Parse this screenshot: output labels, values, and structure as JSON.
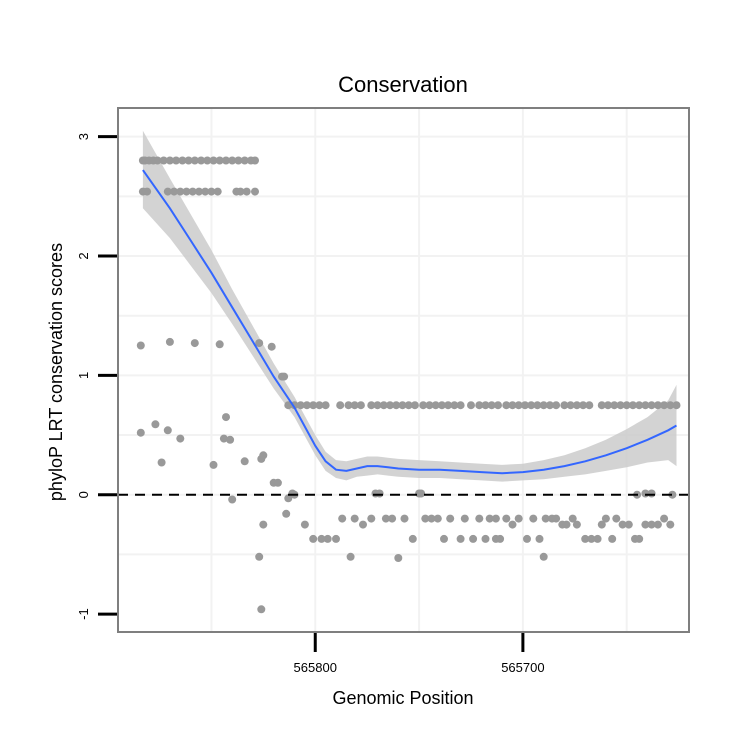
{
  "chart_data": {
    "type": "scatter",
    "title": "Conservation",
    "xlabel": "Genomic Position",
    "ylabel": "phyloP LRT conservation scores",
    "x_reversed": true,
    "xlim": [
      565895,
      565620
    ],
    "ylim": [
      -1.15,
      3.24
    ],
    "x_ticks": [
      565800,
      565700
    ],
    "y_ticks": [
      -1,
      0,
      1,
      2,
      3
    ],
    "x_gridlines": [
      565850,
      565800,
      565750,
      565700,
      565650
    ],
    "y_gridlines": [
      -0.5,
      0,
      0.5,
      1,
      1.5,
      2,
      2.5,
      3
    ],
    "reference_line": {
      "y": 0,
      "style": "dashed"
    },
    "colors": {
      "points": "#999999",
      "smooth_line": "#3366ff",
      "ribbon": "#c8c8c8",
      "panel_border": "#7f7f7f",
      "grid": "#f2f2f2"
    },
    "series": [
      {
        "name": "scores",
        "points": [
          [
            565883,
            2.8
          ],
          [
            565882,
            2.8
          ],
          [
            565880,
            2.8
          ],
          [
            565878,
            2.8
          ],
          [
            565876,
            2.8
          ],
          [
            565873,
            2.8
          ],
          [
            565870,
            2.8
          ],
          [
            565867,
            2.8
          ],
          [
            565864,
            2.8
          ],
          [
            565861,
            2.8
          ],
          [
            565858,
            2.8
          ],
          [
            565855,
            2.8
          ],
          [
            565852,
            2.8
          ],
          [
            565849,
            2.8
          ],
          [
            565846,
            2.8
          ],
          [
            565843,
            2.8
          ],
          [
            565840,
            2.8
          ],
          [
            565837,
            2.8
          ],
          [
            565834,
            2.8
          ],
          [
            565831,
            2.8
          ],
          [
            565829,
            2.8
          ],
          [
            565883,
            2.54
          ],
          [
            565881,
            2.54
          ],
          [
            565871,
            2.54
          ],
          [
            565868,
            2.54
          ],
          [
            565865,
            2.54
          ],
          [
            565862,
            2.54
          ],
          [
            565859,
            2.54
          ],
          [
            565856,
            2.54
          ],
          [
            565853,
            2.54
          ],
          [
            565850,
            2.54
          ],
          [
            565847,
            2.54
          ],
          [
            565838,
            2.54
          ],
          [
            565836,
            2.54
          ],
          [
            565833,
            2.54
          ],
          [
            565829,
            2.54
          ],
          [
            565884,
            1.25
          ],
          [
            565870,
            1.28
          ],
          [
            565858,
            1.27
          ],
          [
            565846,
            1.26
          ],
          [
            565827,
            1.27
          ],
          [
            565821,
            1.24
          ],
          [
            565816,
            0.99
          ],
          [
            565815,
            0.99
          ],
          [
            565884,
            0.52
          ],
          [
            565877,
            0.59
          ],
          [
            565871,
            0.54
          ],
          [
            565865,
            0.47
          ],
          [
            565874,
            0.27
          ],
          [
            565843,
            0.65
          ],
          [
            565844,
            0.47
          ],
          [
            565841,
            0.46
          ],
          [
            565849,
            0.25
          ],
          [
            565840,
            -0.04
          ],
          [
            565834,
            0.28
          ],
          [
            565825,
            0.33
          ],
          [
            565826,
            0.3
          ],
          [
            565820,
            0.1
          ],
          [
            565818,
            0.1
          ],
          [
            565814,
            -0.16
          ],
          [
            565813,
            -0.03
          ],
          [
            565811,
            0.01
          ],
          [
            565810,
            0
          ],
          [
            565827,
            -0.52
          ],
          [
            565826,
            -0.96
          ],
          [
            565825,
            -0.25
          ],
          [
            565813,
            0.75
          ],
          [
            565810,
            0.75
          ],
          [
            565807,
            0.75
          ],
          [
            565804,
            0.75
          ],
          [
            565801,
            0.75
          ],
          [
            565798,
            0.75
          ],
          [
            565795,
            0.75
          ],
          [
            565788,
            0.75
          ],
          [
            565784,
            0.75
          ],
          [
            565781,
            0.75
          ],
          [
            565778,
            0.75
          ],
          [
            565773,
            0.75
          ],
          [
            565770,
            0.75
          ],
          [
            565767,
            0.75
          ],
          [
            565764,
            0.75
          ],
          [
            565761,
            0.75
          ],
          [
            565758,
            0.75
          ],
          [
            565755,
            0.75
          ],
          [
            565752,
            0.75
          ],
          [
            565748,
            0.75
          ],
          [
            565745,
            0.75
          ],
          [
            565742,
            0.75
          ],
          [
            565739,
            0.75
          ],
          [
            565736,
            0.75
          ],
          [
            565733,
            0.75
          ],
          [
            565730,
            0.75
          ],
          [
            565725,
            0.75
          ],
          [
            565721,
            0.75
          ],
          [
            565718,
            0.75
          ],
          [
            565715,
            0.75
          ],
          [
            565712,
            0.75
          ],
          [
            565708,
            0.75
          ],
          [
            565705,
            0.75
          ],
          [
            565702,
            0.75
          ],
          [
            565699,
            0.75
          ],
          [
            565696,
            0.75
          ],
          [
            565693,
            0.75
          ],
          [
            565690,
            0.75
          ],
          [
            565687,
            0.75
          ],
          [
            565684,
            0.75
          ],
          [
            565680,
            0.75
          ],
          [
            565677,
            0.75
          ],
          [
            565674,
            0.75
          ],
          [
            565671,
            0.75
          ],
          [
            565668,
            0.75
          ],
          [
            565662,
            0.75
          ],
          [
            565659,
            0.75
          ],
          [
            565656,
            0.75
          ],
          [
            565653,
            0.75
          ],
          [
            565650,
            0.75
          ],
          [
            565647,
            0.75
          ],
          [
            565644,
            0.75
          ],
          [
            565641,
            0.75
          ],
          [
            565638,
            0.75
          ],
          [
            565635,
            0.75
          ],
          [
            565632,
            0.75
          ],
          [
            565629,
            0.75
          ],
          [
            565626,
            0.75
          ],
          [
            565805,
            -0.25
          ],
          [
            565801,
            -0.37
          ],
          [
            565797,
            -0.37
          ],
          [
            565794,
            -0.37
          ],
          [
            565790,
            -0.37
          ],
          [
            565783,
            -0.52
          ],
          [
            565787,
            -0.2
          ],
          [
            565781,
            -0.2
          ],
          [
            565777,
            -0.25
          ],
          [
            565773,
            -0.2
          ],
          [
            565771,
            0.01
          ],
          [
            565769,
            0.01
          ],
          [
            565766,
            -0.2
          ],
          [
            565763,
            -0.2
          ],
          [
            565760,
            -0.53
          ],
          [
            565757,
            -0.2
          ],
          [
            565753,
            -0.37
          ],
          [
            565750,
            0.01
          ],
          [
            565749,
            0.01
          ],
          [
            565747,
            -0.2
          ],
          [
            565744,
            -0.2
          ],
          [
            565741,
            -0.2
          ],
          [
            565738,
            -0.37
          ],
          [
            565735,
            -0.2
          ],
          [
            565730,
            -0.37
          ],
          [
            565728,
            -0.2
          ],
          [
            565724,
            -0.37
          ],
          [
            565721,
            -0.2
          ],
          [
            565718,
            -0.37
          ],
          [
            565716,
            -0.2
          ],
          [
            565713,
            -0.37
          ],
          [
            565711,
            -0.37
          ],
          [
            565708,
            -0.2
          ],
          [
            565713,
            -0.2
          ],
          [
            565705,
            -0.25
          ],
          [
            565702,
            -0.2
          ],
          [
            565698,
            -0.37
          ],
          [
            565695,
            -0.2
          ],
          [
            565692,
            -0.37
          ],
          [
            565689,
            -0.2
          ],
          [
            565686,
            -0.2
          ],
          [
            565684,
            -0.2
          ],
          [
            565681,
            -0.25
          ],
          [
            565679,
            -0.25
          ],
          [
            565676,
            -0.2
          ],
          [
            565674,
            -0.25
          ],
          [
            565670,
            -0.37
          ],
          [
            565667,
            -0.37
          ],
          [
            565664,
            -0.37
          ],
          [
            565662,
            -0.25
          ],
          [
            565660,
            -0.2
          ],
          [
            565657,
            -0.37
          ],
          [
            565655,
            -0.2
          ],
          [
            565652,
            -0.25
          ],
          [
            565649,
            -0.25
          ],
          [
            565646,
            -0.37
          ],
          [
            565644,
            -0.37
          ],
          [
            565641,
            -0.25
          ],
          [
            565638,
            -0.25
          ],
          [
            565635,
            -0.25
          ],
          [
            565632,
            -0.2
          ],
          [
            565629,
            -0.25
          ],
          [
            565690,
            -0.52
          ],
          [
            565628,
            0
          ],
          [
            565638,
            0.01
          ],
          [
            565641,
            0.01
          ],
          [
            565645,
            0
          ]
        ]
      }
    ],
    "smooth": {
      "x": [
        565883,
        565870,
        565860,
        565850,
        565840,
        565830,
        565820,
        565810,
        565800,
        565795,
        565790,
        565785,
        565780,
        565775,
        565770,
        565765,
        565760,
        565750,
        565740,
        565730,
        565720,
        565710,
        565700,
        565690,
        565680,
        565670,
        565660,
        565650,
        565640,
        565630,
        565626
      ],
      "y": [
        2.72,
        2.4,
        2.13,
        1.86,
        1.57,
        1.28,
        0.99,
        0.73,
        0.41,
        0.28,
        0.21,
        0.2,
        0.22,
        0.24,
        0.24,
        0.23,
        0.22,
        0.21,
        0.21,
        0.2,
        0.19,
        0.18,
        0.19,
        0.21,
        0.24,
        0.28,
        0.33,
        0.39,
        0.46,
        0.54,
        0.58
      ],
      "lower": [
        2.4,
        2.15,
        1.92,
        1.69,
        1.43,
        1.16,
        0.89,
        0.65,
        0.33,
        0.2,
        0.14,
        0.12,
        0.15,
        0.16,
        0.17,
        0.16,
        0.15,
        0.14,
        0.14,
        0.13,
        0.12,
        0.11,
        0.12,
        0.13,
        0.15,
        0.17,
        0.2,
        0.23,
        0.27,
        0.29,
        0.24
      ],
      "upper": [
        3.05,
        2.65,
        2.35,
        2.05,
        1.72,
        1.41,
        1.1,
        0.82,
        0.5,
        0.36,
        0.29,
        0.28,
        0.3,
        0.32,
        0.32,
        0.31,
        0.3,
        0.29,
        0.28,
        0.27,
        0.26,
        0.25,
        0.26,
        0.29,
        0.33,
        0.39,
        0.46,
        0.55,
        0.65,
        0.79,
        0.92
      ]
    }
  }
}
